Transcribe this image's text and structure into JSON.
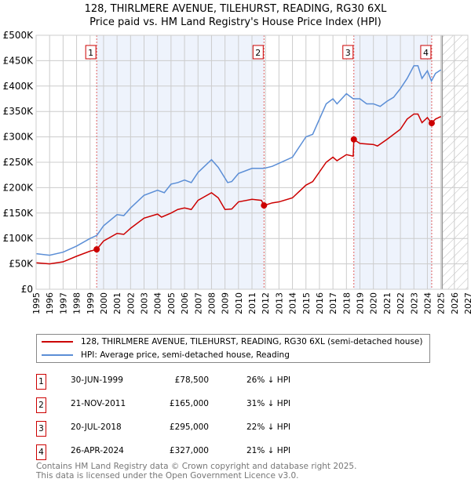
{
  "title": "128, THIRLMERE AVENUE, TILEHURST, READING, RG30 6XL",
  "subtitle": "Price paid vs. HM Land Registry's House Price Index (HPI)",
  "chart_data": {
    "type": "line",
    "ylim": [
      0,
      500000
    ],
    "xlim": [
      1995,
      2027
    ],
    "yticks": [
      {
        "v": 0,
        "label": "£0"
      },
      {
        "v": 50000,
        "label": "£50K"
      },
      {
        "v": 100000,
        "label": "£100K"
      },
      {
        "v": 150000,
        "label": "£150K"
      },
      {
        "v": 200000,
        "label": "£200K"
      },
      {
        "v": 250000,
        "label": "£250K"
      },
      {
        "v": 300000,
        "label": "£300K"
      },
      {
        "v": 350000,
        "label": "£350K"
      },
      {
        "v": 400000,
        "label": "£400K"
      },
      {
        "v": 450000,
        "label": "£450K"
      },
      {
        "v": 500000,
        "label": "£500K"
      }
    ],
    "xticks": [
      "1995",
      "1996",
      "1997",
      "1998",
      "1999",
      "2000",
      "2001",
      "2002",
      "2003",
      "2004",
      "2005",
      "2006",
      "2007",
      "2008",
      "2009",
      "2010",
      "2011",
      "2012",
      "2013",
      "2014",
      "2015",
      "2016",
      "2017",
      "2018",
      "2019",
      "2020",
      "2021",
      "2022",
      "2023",
      "2024",
      "2025",
      "2026",
      "2027"
    ],
    "forecast_from": 2025.1,
    "series": [
      {
        "name": "128, THIRLMERE AVENUE, TILEHURST, READING, RG30 6XL (semi-detached house)",
        "color": "#cc0000",
        "x": [
          1995,
          1996,
          1997,
          1998,
          1999,
          1999.5,
          2000,
          2001,
          2001.5,
          2002,
          2003,
          2004,
          2004.3,
          2005,
          2005.5,
          2006,
          2006.5,
          2007,
          2008,
          2008.5,
          2009,
          2009.5,
          2010,
          2011,
          2011.7,
          2011.9,
          2012.5,
          2013,
          2014,
          2015,
          2015.5,
          2016.5,
          2017,
          2017.3,
          2018,
          2018.5,
          2018.55,
          2019,
          2020,
          2020.3,
          2021,
          2022,
          2022.5,
          2023,
          2023.3,
          2023.6,
          2024,
          2024.3,
          2024.6,
          2025
        ],
        "y": [
          52000,
          50000,
          54000,
          65000,
          75000,
          78500,
          95000,
          110000,
          108000,
          120000,
          140000,
          148000,
          142000,
          150000,
          157000,
          160000,
          157000,
          175000,
          190000,
          180000,
          157000,
          158000,
          172000,
          177000,
          175000,
          165000,
          170000,
          172000,
          180000,
          205000,
          212000,
          250000,
          260000,
          253000,
          265000,
          262000,
          295000,
          287000,
          285000,
          282000,
          295000,
          315000,
          335000,
          345000,
          345000,
          328000,
          338000,
          327000,
          335000,
          340000
        ]
      },
      {
        "name": "HPI: Average price, semi-detached house, Reading",
        "color": "#5b8ed6",
        "x": [
          1995,
          1996,
          1997,
          1998,
          1999,
          1999.5,
          2000,
          2001,
          2001.5,
          2002,
          2003,
          2004,
          2004.5,
          2005,
          2005.5,
          2006,
          2006.5,
          2007,
          2008,
          2008.5,
          2009.2,
          2009.5,
          2010,
          2011,
          2011.9,
          2012.5,
          2013,
          2014,
          2015,
          2015.5,
          2016.5,
          2017,
          2017.3,
          2018,
          2018.5,
          2019,
          2019.5,
          2020,
          2020.5,
          2021,
          2021.5,
          2022,
          2022.5,
          2023,
          2023.3,
          2023.6,
          2024,
          2024.3,
          2024.6,
          2025
        ],
        "y": [
          70000,
          67000,
          73000,
          85000,
          100000,
          106000,
          125000,
          147000,
          145000,
          160000,
          185000,
          195000,
          190000,
          207000,
          210000,
          215000,
          210000,
          230000,
          255000,
          240000,
          210000,
          212000,
          228000,
          238000,
          238000,
          242000,
          248000,
          260000,
          300000,
          305000,
          365000,
          375000,
          365000,
          385000,
          375000,
          375000,
          365000,
          365000,
          360000,
          370000,
          378000,
          395000,
          415000,
          440000,
          440000,
          415000,
          430000,
          410000,
          425000,
          432000
        ]
      }
    ],
    "sales": [
      {
        "n": "1",
        "x": 1999.49,
        "price": 78500,
        "date": "30-JUN-1999",
        "price_label": "£78,500",
        "hpi": "26% ↓ HPI"
      },
      {
        "n": "2",
        "x": 2011.89,
        "price": 165000,
        "date": "21-NOV-2011",
        "price_label": "£165,000",
        "hpi": "31% ↓ HPI"
      },
      {
        "n": "3",
        "x": 2018.55,
        "price": 295000,
        "date": "20-JUL-2018",
        "price_label": "£295,000",
        "hpi": "22% ↓ HPI"
      },
      {
        "n": "4",
        "x": 2024.32,
        "price": 327000,
        "date": "26-APR-2024",
        "price_label": "£327,000",
        "hpi": "21% ↓ HPI"
      }
    ]
  },
  "footer": [
    "Contains HM Land Registry data © Crown copyright and database right 2025.",
    "This data is licensed under the Open Government Licence v3.0."
  ]
}
